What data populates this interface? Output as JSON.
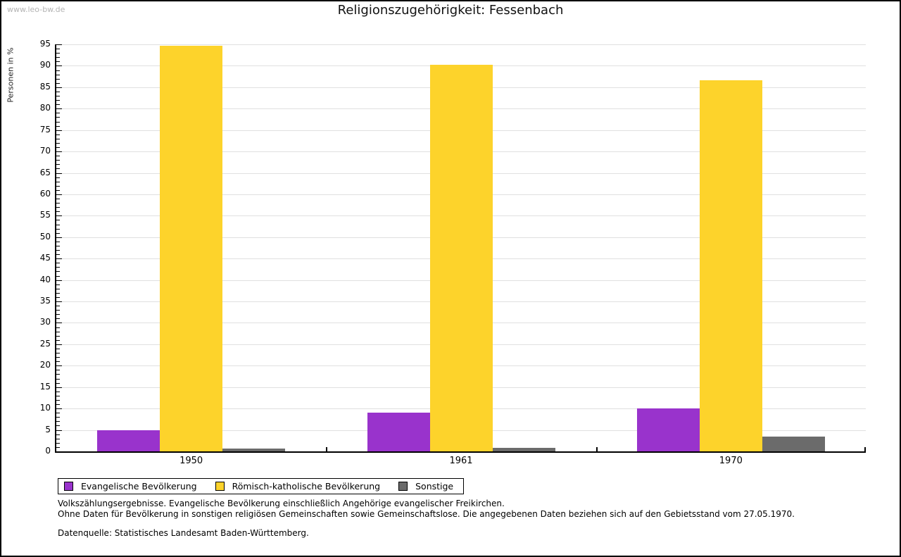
{
  "watermark": "www.leo-bw.de",
  "title": "Religionszugehörigkeit: Fessenbach",
  "chart_data": {
    "type": "bar",
    "title": "Religionszugehörigkeit: Fessenbach",
    "xlabel": "",
    "ylabel": "Personen in %",
    "ylim": [
      0,
      95
    ],
    "ytick_step": 5,
    "ytick_minor_step": 1,
    "grid": true,
    "legend_position": "bottom-left",
    "categories": [
      "1950",
      "1961",
      "1970"
    ],
    "series": [
      {
        "name": "Evangelische Bevölkerung",
        "color": "#9933CC",
        "values": [
          5.0,
          9.1,
          10.1
        ]
      },
      {
        "name": "Römisch-katholische Bevölkerung",
        "color": "#FDD32B",
        "values": [
          94.7,
          90.3,
          86.6
        ]
      },
      {
        "name": "Sonstige",
        "color": "#6B6B6B",
        "values": [
          0.6,
          0.8,
          3.4
        ]
      }
    ]
  },
  "footer": {
    "line1": "Volkszählungsergebnisse. Evangelische Bevölkerung einschließlich Angehörige evangelischer Freikirchen.",
    "line2": "Ohne Daten für Bevölkerung in sonstigen religiösen Gemeinschaften sowie Gemeinschaftslose. Die angegebenen Daten beziehen sich auf den Gebietsstand vom 27.05.1970.",
    "source": "Datenquelle: Statistisches Landesamt Baden-Württemberg."
  }
}
